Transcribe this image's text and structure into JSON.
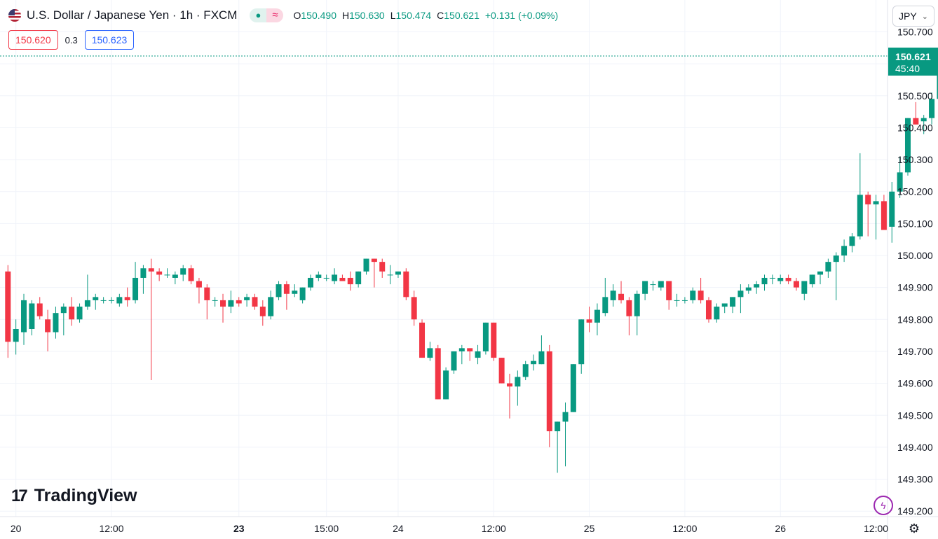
{
  "header": {
    "title": "U.S. Dollar / Japanese Yen · 1h · FXCM",
    "status_open_symbol": "●",
    "status_delayed_symbol": "≈",
    "ohlc": {
      "o_label": "O",
      "o": "150.490",
      "h_label": "H",
      "h": "150.630",
      "l_label": "L",
      "l": "150.474",
      "c_label": "C",
      "c": "150.621",
      "change": "+0.131 (+0.09%)"
    }
  },
  "quotes": {
    "sell": "150.620",
    "spread": "0.3",
    "buy": "150.623"
  },
  "currency_selector": {
    "label": "JPY"
  },
  "last_price": {
    "value": "150.621",
    "countdown": "45:40"
  },
  "branding": {
    "logo_mark": "17",
    "logo_text": "TradingView"
  },
  "colors": {
    "up": "#089981",
    "down": "#f23645",
    "grid": "#f0f3fa",
    "axis_text": "#131722"
  },
  "icons": {
    "settings": "gear-icon",
    "bolt": "lightning-icon"
  },
  "chart_data": {
    "type": "candlestick",
    "y_ticks": [
      "150.700",
      "150.600",
      "150.500",
      "150.400",
      "150.300",
      "150.200",
      "150.100",
      "150.000",
      "149.900",
      "149.800",
      "149.700",
      "149.600",
      "149.500",
      "149.400",
      "149.300",
      "149.200"
    ],
    "ylim": [
      149.2,
      150.73
    ],
    "x_ticks": [
      {
        "label": "20",
        "bar": 1
      },
      {
        "label": "12:00",
        "bar": 13
      },
      {
        "label": "23",
        "bar": 29
      },
      {
        "label": "15:00",
        "bar": 40
      },
      {
        "label": "24",
        "bar": 49
      },
      {
        "label": "12:00",
        "bar": 61
      },
      {
        "label": "25",
        "bar": 73
      },
      {
        "label": "12:00",
        "bar": 85
      },
      {
        "label": "26",
        "bar": 97
      },
      {
        "label": "12:00",
        "bar": 109
      }
    ],
    "candles": [
      [
        149.95,
        149.97,
        149.68,
        149.73
      ],
      [
        149.73,
        149.8,
        149.69,
        149.77
      ],
      [
        149.76,
        149.88,
        149.72,
        149.86
      ],
      [
        149.77,
        149.86,
        149.75,
        149.85
      ],
      [
        149.85,
        149.87,
        149.8,
        149.81
      ],
      [
        149.8,
        149.83,
        149.7,
        149.76
      ],
      [
        149.76,
        149.84,
        149.74,
        149.82
      ],
      [
        149.82,
        149.85,
        149.75,
        149.84
      ],
      [
        149.84,
        149.87,
        149.78,
        149.8
      ],
      [
        149.8,
        149.85,
        149.79,
        149.84
      ],
      [
        149.84,
        149.94,
        149.83,
        149.86
      ],
      [
        149.86,
        149.88,
        149.83,
        149.87
      ],
      [
        149.86,
        149.87,
        149.85,
        149.86
      ],
      [
        149.86,
        149.87,
        149.85,
        149.86
      ],
      [
        149.85,
        149.88,
        149.84,
        149.87
      ],
      [
        149.87,
        149.9,
        149.84,
        149.86
      ],
      [
        149.86,
        149.98,
        149.85,
        149.93
      ],
      [
        149.93,
        149.97,
        149.88,
        149.96
      ],
      [
        149.96,
        149.99,
        149.61,
        149.95
      ],
      [
        149.95,
        149.96,
        149.92,
        149.94
      ],
      [
        149.94,
        149.96,
        149.93,
        149.94
      ],
      [
        149.93,
        149.95,
        149.91,
        149.94
      ],
      [
        149.94,
        149.97,
        149.92,
        149.96
      ],
      [
        149.96,
        149.97,
        149.91,
        149.92
      ],
      [
        149.92,
        149.93,
        149.85,
        149.9
      ],
      [
        149.9,
        149.91,
        149.8,
        149.86
      ],
      [
        149.86,
        149.87,
        149.84,
        149.86
      ],
      [
        149.86,
        149.88,
        149.79,
        149.84
      ],
      [
        149.84,
        149.89,
        149.82,
        149.86
      ],
      [
        149.86,
        149.87,
        149.84,
        149.85
      ],
      [
        149.86,
        149.88,
        149.84,
        149.87
      ],
      [
        149.87,
        149.88,
        149.83,
        149.84
      ],
      [
        149.84,
        149.86,
        149.78,
        149.81
      ],
      [
        149.81,
        149.89,
        149.8,
        149.87
      ],
      [
        149.87,
        149.92,
        149.86,
        149.91
      ],
      [
        149.91,
        149.92,
        149.83,
        149.88
      ],
      [
        149.88,
        149.91,
        149.87,
        149.89
      ],
      [
        149.86,
        149.9,
        149.85,
        149.9
      ],
      [
        149.9,
        149.94,
        149.89,
        149.93
      ],
      [
        149.93,
        149.95,
        149.92,
        149.94
      ],
      [
        149.93,
        149.94,
        149.92,
        149.93
      ],
      [
        149.92,
        149.96,
        149.91,
        149.94
      ],
      [
        149.93,
        149.94,
        149.92,
        149.92
      ],
      [
        149.93,
        149.95,
        149.89,
        149.91
      ],
      [
        149.91,
        149.95,
        149.9,
        149.95
      ],
      [
        149.95,
        149.99,
        149.94,
        149.99
      ],
      [
        149.99,
        149.99,
        149.9,
        149.98
      ],
      [
        149.98,
        149.99,
        149.93,
        149.95
      ],
      [
        149.94,
        149.97,
        149.91,
        149.94
      ],
      [
        149.94,
        149.95,
        149.93,
        149.95
      ],
      [
        149.95,
        149.96,
        149.86,
        149.87
      ],
      [
        149.87,
        149.89,
        149.78,
        149.8
      ],
      [
        149.79,
        149.8,
        149.68,
        149.68
      ],
      [
        149.68,
        149.73,
        149.67,
        149.71
      ],
      [
        149.71,
        149.72,
        149.55,
        149.55
      ],
      [
        149.55,
        149.65,
        149.55,
        149.64
      ],
      [
        149.64,
        149.7,
        149.63,
        149.7
      ],
      [
        149.7,
        149.72,
        149.66,
        149.71
      ],
      [
        149.71,
        149.71,
        149.67,
        149.7
      ],
      [
        149.68,
        149.72,
        149.66,
        149.7
      ],
      [
        149.7,
        149.79,
        149.69,
        149.79
      ],
      [
        149.79,
        149.79,
        149.67,
        149.68
      ],
      [
        149.68,
        149.68,
        149.6,
        149.6
      ],
      [
        149.6,
        149.63,
        149.49,
        149.59
      ],
      [
        149.59,
        149.64,
        149.53,
        149.62
      ],
      [
        149.62,
        149.67,
        149.61,
        149.66
      ],
      [
        149.66,
        149.69,
        149.64,
        149.67
      ],
      [
        149.66,
        149.75,
        149.66,
        149.7
      ],
      [
        149.7,
        149.72,
        149.4,
        149.45
      ],
      [
        149.45,
        149.48,
        149.32,
        149.48
      ],
      [
        149.48,
        149.54,
        149.34,
        149.51
      ],
      [
        149.51,
        149.66,
        149.51,
        149.66
      ],
      [
        149.66,
        149.8,
        149.63,
        149.8
      ],
      [
        149.8,
        149.84,
        149.76,
        149.79
      ],
      [
        149.79,
        149.85,
        149.75,
        149.83
      ],
      [
        149.82,
        149.93,
        149.81,
        149.87
      ],
      [
        149.86,
        149.91,
        149.84,
        149.89
      ],
      [
        149.88,
        149.92,
        149.85,
        149.86
      ],
      [
        149.86,
        149.87,
        149.75,
        149.81
      ],
      [
        149.81,
        149.89,
        149.75,
        149.88
      ],
      [
        149.88,
        149.92,
        149.86,
        149.92
      ],
      [
        149.91,
        149.92,
        149.89,
        149.91
      ],
      [
        149.9,
        149.92,
        149.89,
        149.92
      ],
      [
        149.92,
        149.92,
        149.83,
        149.86
      ],
      [
        149.86,
        149.88,
        149.84,
        149.86
      ],
      [
        149.86,
        149.87,
        149.85,
        149.86
      ],
      [
        149.86,
        149.9,
        149.85,
        149.89
      ],
      [
        149.89,
        149.93,
        149.85,
        149.86
      ],
      [
        149.86,
        149.87,
        149.79,
        149.8
      ],
      [
        149.8,
        149.85,
        149.79,
        149.84
      ],
      [
        149.84,
        149.85,
        149.82,
        149.85
      ],
      [
        149.84,
        149.87,
        149.82,
        149.87
      ],
      [
        149.87,
        149.91,
        149.82,
        149.89
      ],
      [
        149.89,
        149.91,
        149.88,
        149.9
      ],
      [
        149.9,
        149.92,
        149.88,
        149.91
      ],
      [
        149.91,
        149.94,
        149.89,
        149.93
      ],
      [
        149.93,
        149.94,
        149.91,
        149.93
      ],
      [
        149.92,
        149.94,
        149.91,
        149.93
      ],
      [
        149.93,
        149.94,
        149.91,
        149.92
      ],
      [
        149.92,
        149.93,
        149.89,
        149.9
      ],
      [
        149.88,
        149.92,
        149.86,
        149.92
      ],
      [
        149.91,
        149.94,
        149.9,
        149.94
      ],
      [
        149.94,
        149.95,
        149.91,
        149.95
      ],
      [
        149.95,
        149.99,
        149.93,
        149.98
      ],
      [
        149.98,
        150.01,
        149.86,
        150.0
      ],
      [
        150.0,
        150.05,
        149.98,
        150.03
      ],
      [
        150.03,
        150.07,
        150.01,
        150.06
      ],
      [
        150.06,
        150.32,
        150.05,
        150.19
      ],
      [
        150.19,
        150.2,
        150.06,
        150.16
      ],
      [
        150.16,
        150.19,
        150.05,
        150.17
      ],
      [
        150.17,
        150.19,
        150.08,
        150.08
      ],
      [
        150.09,
        150.23,
        150.04,
        150.2
      ],
      [
        150.2,
        150.31,
        150.18,
        150.26
      ],
      [
        150.26,
        150.43,
        150.25,
        150.43
      ],
      [
        150.43,
        150.48,
        150.41,
        150.41
      ],
      [
        150.42,
        150.44,
        150.38,
        150.43
      ],
      [
        150.43,
        150.51,
        150.41,
        150.49
      ],
      [
        150.49,
        150.63,
        150.474,
        150.621
      ]
    ]
  }
}
